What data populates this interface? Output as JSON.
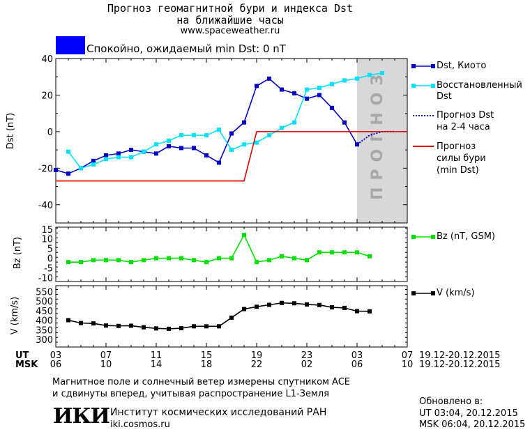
{
  "header": {
    "title_line1": "Прогноз геомагнитной бури и индекса Dst",
    "title_line2": "на ближайшие часы",
    "url": "www.spaceweather.ru",
    "status_text": "Спокойно, ожидаемый min Dst: 0 nT",
    "status_color": "#0000ff"
  },
  "chart_data": [
    {
      "type": "line",
      "panel": "dst",
      "ylabel": "Dst (nT)",
      "ylim": [
        -50,
        40
      ],
      "yticks": [
        -40,
        -20,
        0,
        20,
        40
      ],
      "xlim": [
        3,
        31
      ],
      "forecast_region": {
        "x_from": 27,
        "x_to": 31,
        "label": "ПРОГНОЗ",
        "color": "#d8d8d8"
      },
      "series": [
        {
          "name": "Dst, Киото",
          "color": "#0000c8",
          "marker": "square",
          "x": [
            3,
            4,
            5,
            6,
            7,
            8,
            9,
            10,
            11,
            12,
            13,
            14,
            15,
            16,
            17,
            18,
            19,
            20,
            21,
            22,
            23,
            24,
            25,
            26,
            27
          ],
          "y": [
            -21,
            -23,
            -20,
            -16,
            -13,
            -12,
            -10,
            -11,
            -12,
            -8,
            -9,
            -9,
            -13,
            -17,
            -1,
            5,
            25,
            29,
            23,
            21,
            18,
            20,
            13,
            5,
            -7
          ]
        },
        {
          "name": "Восстановленный Dst",
          "color": "#00e0ff",
          "marker": "square",
          "x": [
            4,
            5,
            6,
            7,
            8,
            9,
            10,
            11,
            12,
            13,
            14,
            15,
            16,
            17,
            18,
            19,
            20,
            21,
            22,
            23,
            24,
            25,
            26,
            27,
            28,
            29
          ],
          "y": [
            -11,
            -20,
            -18,
            -15,
            -14,
            -14,
            -11,
            -7,
            -5,
            -2,
            -2,
            -2,
            1,
            -10,
            -7,
            -6,
            -2,
            2,
            5,
            23,
            24,
            26,
            28,
            29,
            31,
            32
          ]
        },
        {
          "name": "Прогноз Dst на 2-4 часа",
          "color": "#0000c8",
          "style": "dotted",
          "x": [
            27,
            28,
            29,
            30
          ],
          "y": [
            -7,
            -2,
            0,
            0
          ]
        },
        {
          "name": "Прогноз силы бури (min Dst)",
          "color": "#e00000",
          "style": "solid",
          "x": [
            3,
            18,
            19,
            31
          ],
          "y": [
            -27,
            -27,
            0,
            0
          ]
        }
      ]
    },
    {
      "type": "line",
      "panel": "bz",
      "ylabel": "Bz (nT)",
      "ylim": [
        -12,
        16
      ],
      "yticks": [
        -10,
        -5,
        0,
        5,
        10,
        15
      ],
      "xlim": [
        3,
        31
      ],
      "series": [
        {
          "name": "Bz (nT, GSM)",
          "color": "#00e000",
          "marker": "square",
          "x": [
            4,
            5,
            6,
            7,
            8,
            9,
            10,
            11,
            12,
            13,
            14,
            15,
            16,
            17,
            18,
            19,
            20,
            21,
            22,
            23,
            24,
            25,
            26,
            27,
            28
          ],
          "y": [
            -2,
            -2,
            -1,
            -1,
            -1,
            -2,
            -1,
            0,
            0,
            0,
            -1,
            -2,
            0,
            0,
            12,
            -2,
            -1,
            1,
            0,
            -1,
            3,
            3,
            3,
            3,
            1
          ]
        }
      ]
    },
    {
      "type": "line",
      "panel": "v",
      "ylabel": "V (km/s)",
      "ylim": [
        260,
        580
      ],
      "yticks": [
        300,
        350,
        400,
        450,
        500,
        550
      ],
      "xlim": [
        3,
        31
      ],
      "series": [
        {
          "name": "V (km/s)",
          "color": "#000000",
          "marker": "square",
          "x": [
            4,
            5,
            6,
            7,
            8,
            9,
            10,
            11,
            12,
            13,
            14,
            15,
            16,
            17,
            18,
            19,
            20,
            21,
            22,
            23,
            24,
            25,
            26,
            27,
            28
          ],
          "y": [
            400,
            385,
            383,
            372,
            370,
            371,
            363,
            357,
            355,
            358,
            368,
            368,
            368,
            413,
            458,
            470,
            480,
            490,
            488,
            482,
            479,
            467,
            464,
            447,
            446
          ]
        }
      ]
    }
  ],
  "axis": {
    "ut_label": "UT",
    "msk_label": "MSK",
    "ut_ticks": [
      "03",
      "07",
      "11",
      "15",
      "19",
      "23",
      "03",
      "07"
    ],
    "msk_ticks": [
      "06",
      "10",
      "14",
      "18",
      "22",
      "02",
      "06",
      "10"
    ],
    "date_range_ut": "19.12-20.12.2015",
    "date_range_msk": "19.12-20.12.2015"
  },
  "legend": {
    "dst_kyoto": "Dst, Киото",
    "restored_line1": "Восстановленный",
    "restored_line2": "Dst",
    "forecast_line1": "Прогноз Dst",
    "forecast_line2": "на 2-4 часа",
    "storm_line1": "Прогноз",
    "storm_line2": "силы бури",
    "storm_line3": "(min Dst)",
    "bz": "Bz (nT, GSM)",
    "v": "V (km/s)"
  },
  "footer": {
    "note_line1": "Магнитное поле и солнечный ветер измерены спутником ACE",
    "note_line2": "и сдвинуты вперед, учитывая распространение L1-Земля",
    "logo_text": "ИКИ",
    "institute": "Институт космических исследований РАН",
    "institute_url": "iki.cosmos.ru",
    "updated_label": "Обновлено в:",
    "updated_ut": "UT  03:04, 20.12.2015",
    "updated_msk": "MSK 06:04, 20.12.2015"
  }
}
